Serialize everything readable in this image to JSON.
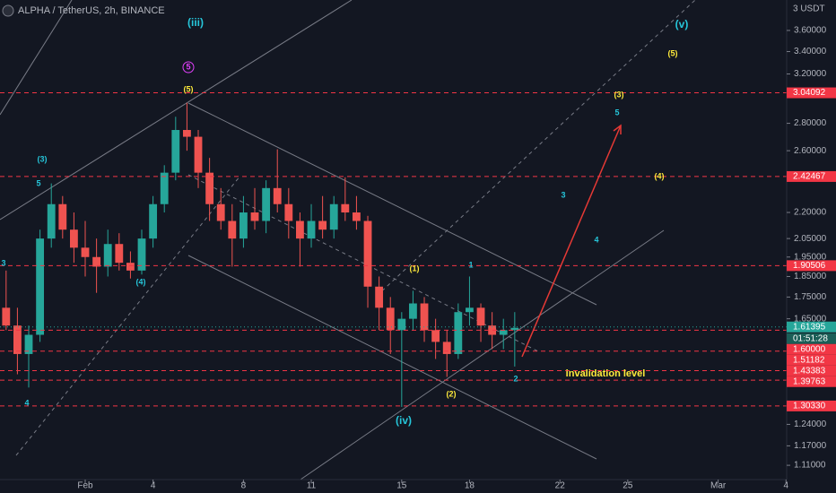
{
  "chart_data": {
    "type": "candlestick",
    "title": "ALPHA / TetherUS, 2h, BINANCE",
    "currency": "3 USDT",
    "log_scale": true,
    "up_color": "#26a69a",
    "down_color": "#ef5350",
    "x": [
      -2.5,
      -2,
      -1.5,
      -1,
      -0.5,
      0,
      0.5,
      1,
      1.5,
      2,
      2.5,
      3,
      3.5,
      4,
      4.5,
      5,
      5.5,
      6,
      6.5,
      7,
      7.5,
      8,
      8.5,
      9,
      9.5,
      10,
      10.5,
      11,
      11.5,
      12,
      12.5,
      13,
      13.5,
      14,
      14.5,
      15,
      15.5,
      16,
      16.5,
      17,
      17.5,
      18,
      18.5,
      19,
      19.5,
      20
    ],
    "open": [
      1.7,
      1.62,
      1.5,
      1.58,
      2.05,
      2.25,
      2.1,
      2.0,
      1.95,
      1.9,
      2.02,
      1.92,
      1.88,
      2.05,
      2.25,
      2.45,
      2.75,
      2.7,
      2.45,
      2.25,
      2.15,
      2.05,
      2.2,
      2.15,
      2.35,
      2.25,
      2.15,
      2.05,
      2.15,
      2.1,
      2.25,
      2.2,
      2.15,
      1.8,
      1.7,
      1.6,
      1.65,
      1.72,
      1.6,
      1.55,
      1.5,
      1.68,
      1.7,
      1.62,
      1.58,
      1.6
    ],
    "high": [
      1.88,
      1.7,
      1.62,
      2.1,
      2.38,
      2.3,
      2.2,
      2.15,
      2.05,
      2.1,
      2.08,
      1.98,
      2.1,
      2.3,
      2.5,
      2.85,
      2.96,
      2.75,
      2.55,
      2.35,
      2.25,
      2.3,
      2.35,
      2.4,
      2.61,
      2.35,
      2.2,
      2.25,
      2.3,
      2.3,
      2.42,
      2.3,
      2.18,
      1.85,
      1.75,
      1.68,
      1.78,
      1.75,
      1.65,
      1.6,
      1.72,
      1.85,
      1.72,
      1.68,
      1.65,
      1.68
    ],
    "low": [
      1.6,
      1.42,
      1.37,
      1.55,
      2.0,
      2.05,
      1.92,
      1.85,
      1.77,
      1.85,
      1.88,
      1.84,
      1.86,
      2.0,
      2.2,
      2.4,
      2.6,
      2.35,
      2.15,
      2.1,
      1.9,
      2.0,
      2.1,
      2.08,
      2.2,
      2.05,
      1.9,
      2.0,
      2.05,
      2.05,
      2.15,
      2.1,
      1.7,
      1.6,
      1.5,
      1.3,
      1.6,
      1.55,
      1.48,
      1.41,
      1.48,
      1.62,
      1.55,
      1.52,
      1.52,
      1.45
    ],
    "close": [
      1.62,
      1.5,
      1.58,
      2.05,
      2.25,
      2.1,
      2.0,
      1.95,
      1.9,
      2.02,
      1.92,
      1.88,
      2.05,
      2.25,
      2.45,
      2.75,
      2.7,
      2.45,
      2.25,
      2.15,
      2.05,
      2.2,
      2.15,
      2.35,
      2.25,
      2.15,
      2.05,
      2.15,
      2.1,
      2.25,
      2.2,
      2.15,
      1.8,
      1.7,
      1.6,
      1.65,
      1.72,
      1.6,
      1.55,
      1.5,
      1.68,
      1.7,
      1.62,
      1.58,
      1.6,
      1.61
    ],
    "xlim": [
      -2.77,
      32.03
    ],
    "xticks": [
      {
        "value": 1,
        "label": "Feb"
      },
      4,
      8,
      11,
      15,
      18,
      22,
      25,
      {
        "value": 29,
        "label": "Mar"
      },
      {
        "value": 32,
        "label": "4"
      }
    ],
    "ylim": [
      1.068,
      3.909
    ],
    "yticks": [
      {
        "value": 3.6,
        "label": "3.60000"
      },
      {
        "value": 3.4,
        "label": "3.40000"
      },
      {
        "value": 3.2,
        "label": "3.20000"
      },
      {
        "value": 2.8,
        "label": "2.80000"
      },
      {
        "value": 2.6,
        "label": "2.60000"
      },
      {
        "value": 2.2,
        "label": "2.20000"
      },
      {
        "value": 2.05,
        "label": "2.05000"
      },
      {
        "value": 1.95,
        "label": "1.95000"
      },
      {
        "value": 1.85,
        "label": "1.85000"
      },
      {
        "value": 1.75,
        "label": "1.75000"
      },
      {
        "value": 1.65,
        "label": "1.65000"
      },
      {
        "value": 1.24,
        "label": "1.24000"
      },
      {
        "value": 1.17,
        "label": "1.17000"
      },
      {
        "value": 1.11,
        "label": "1.11000"
      }
    ],
    "level_color": "#f23645",
    "levels": [
      3.04092,
      2.42467,
      1.90506,
      {
        "value": 1.6,
        "label": "1.60000"
      },
      1.51182,
      1.43383,
      1.39763,
      {
        "value": 1.3033,
        "label": "1.30330"
      }
    ],
    "last_price": 1.61395,
    "countdown": "01:51:28",
    "annotations": [
      {
        "text": "(iii)",
        "color": "#26c6da"
      },
      {
        "text": "5",
        "color": "#e040fb"
      },
      {
        "text": "(5)",
        "color": "#ffeb3b"
      },
      {
        "text": "(3)",
        "color": "#26c6da"
      },
      {
        "text": "5",
        "color": "#26c6da"
      },
      {
        "text": "3",
        "color": "#26c6da"
      },
      {
        "text": "4",
        "color": "#26c6da"
      },
      {
        "text": "(4)",
        "color": "#26c6da"
      },
      {
        "text": "(1)",
        "color": "#ffeb3b"
      },
      {
        "text": "1",
        "color": "#26c6da"
      },
      {
        "text": "(iv)",
        "color": "#26c6da"
      },
      {
        "text": "(2)",
        "color": "#ffeb3b"
      },
      {
        "text": "2",
        "color": "#26c6da"
      },
      {
        "text": "invalidation level",
        "color": "#ffeb3b"
      },
      {
        "text": "(v)",
        "color": "#26c6da"
      },
      {
        "text": "(5)",
        "color": "#ffeb3b"
      },
      {
        "text": "(3)",
        "color": "#ffeb3b"
      },
      {
        "text": "5",
        "color": "#26c6da"
      },
      {
        "text": "(4)",
        "color": "#ffeb3b"
      },
      {
        "text": "3",
        "color": "#26c6da"
      },
      {
        "text": "4",
        "color": "#26c6da"
      }
    ]
  }
}
